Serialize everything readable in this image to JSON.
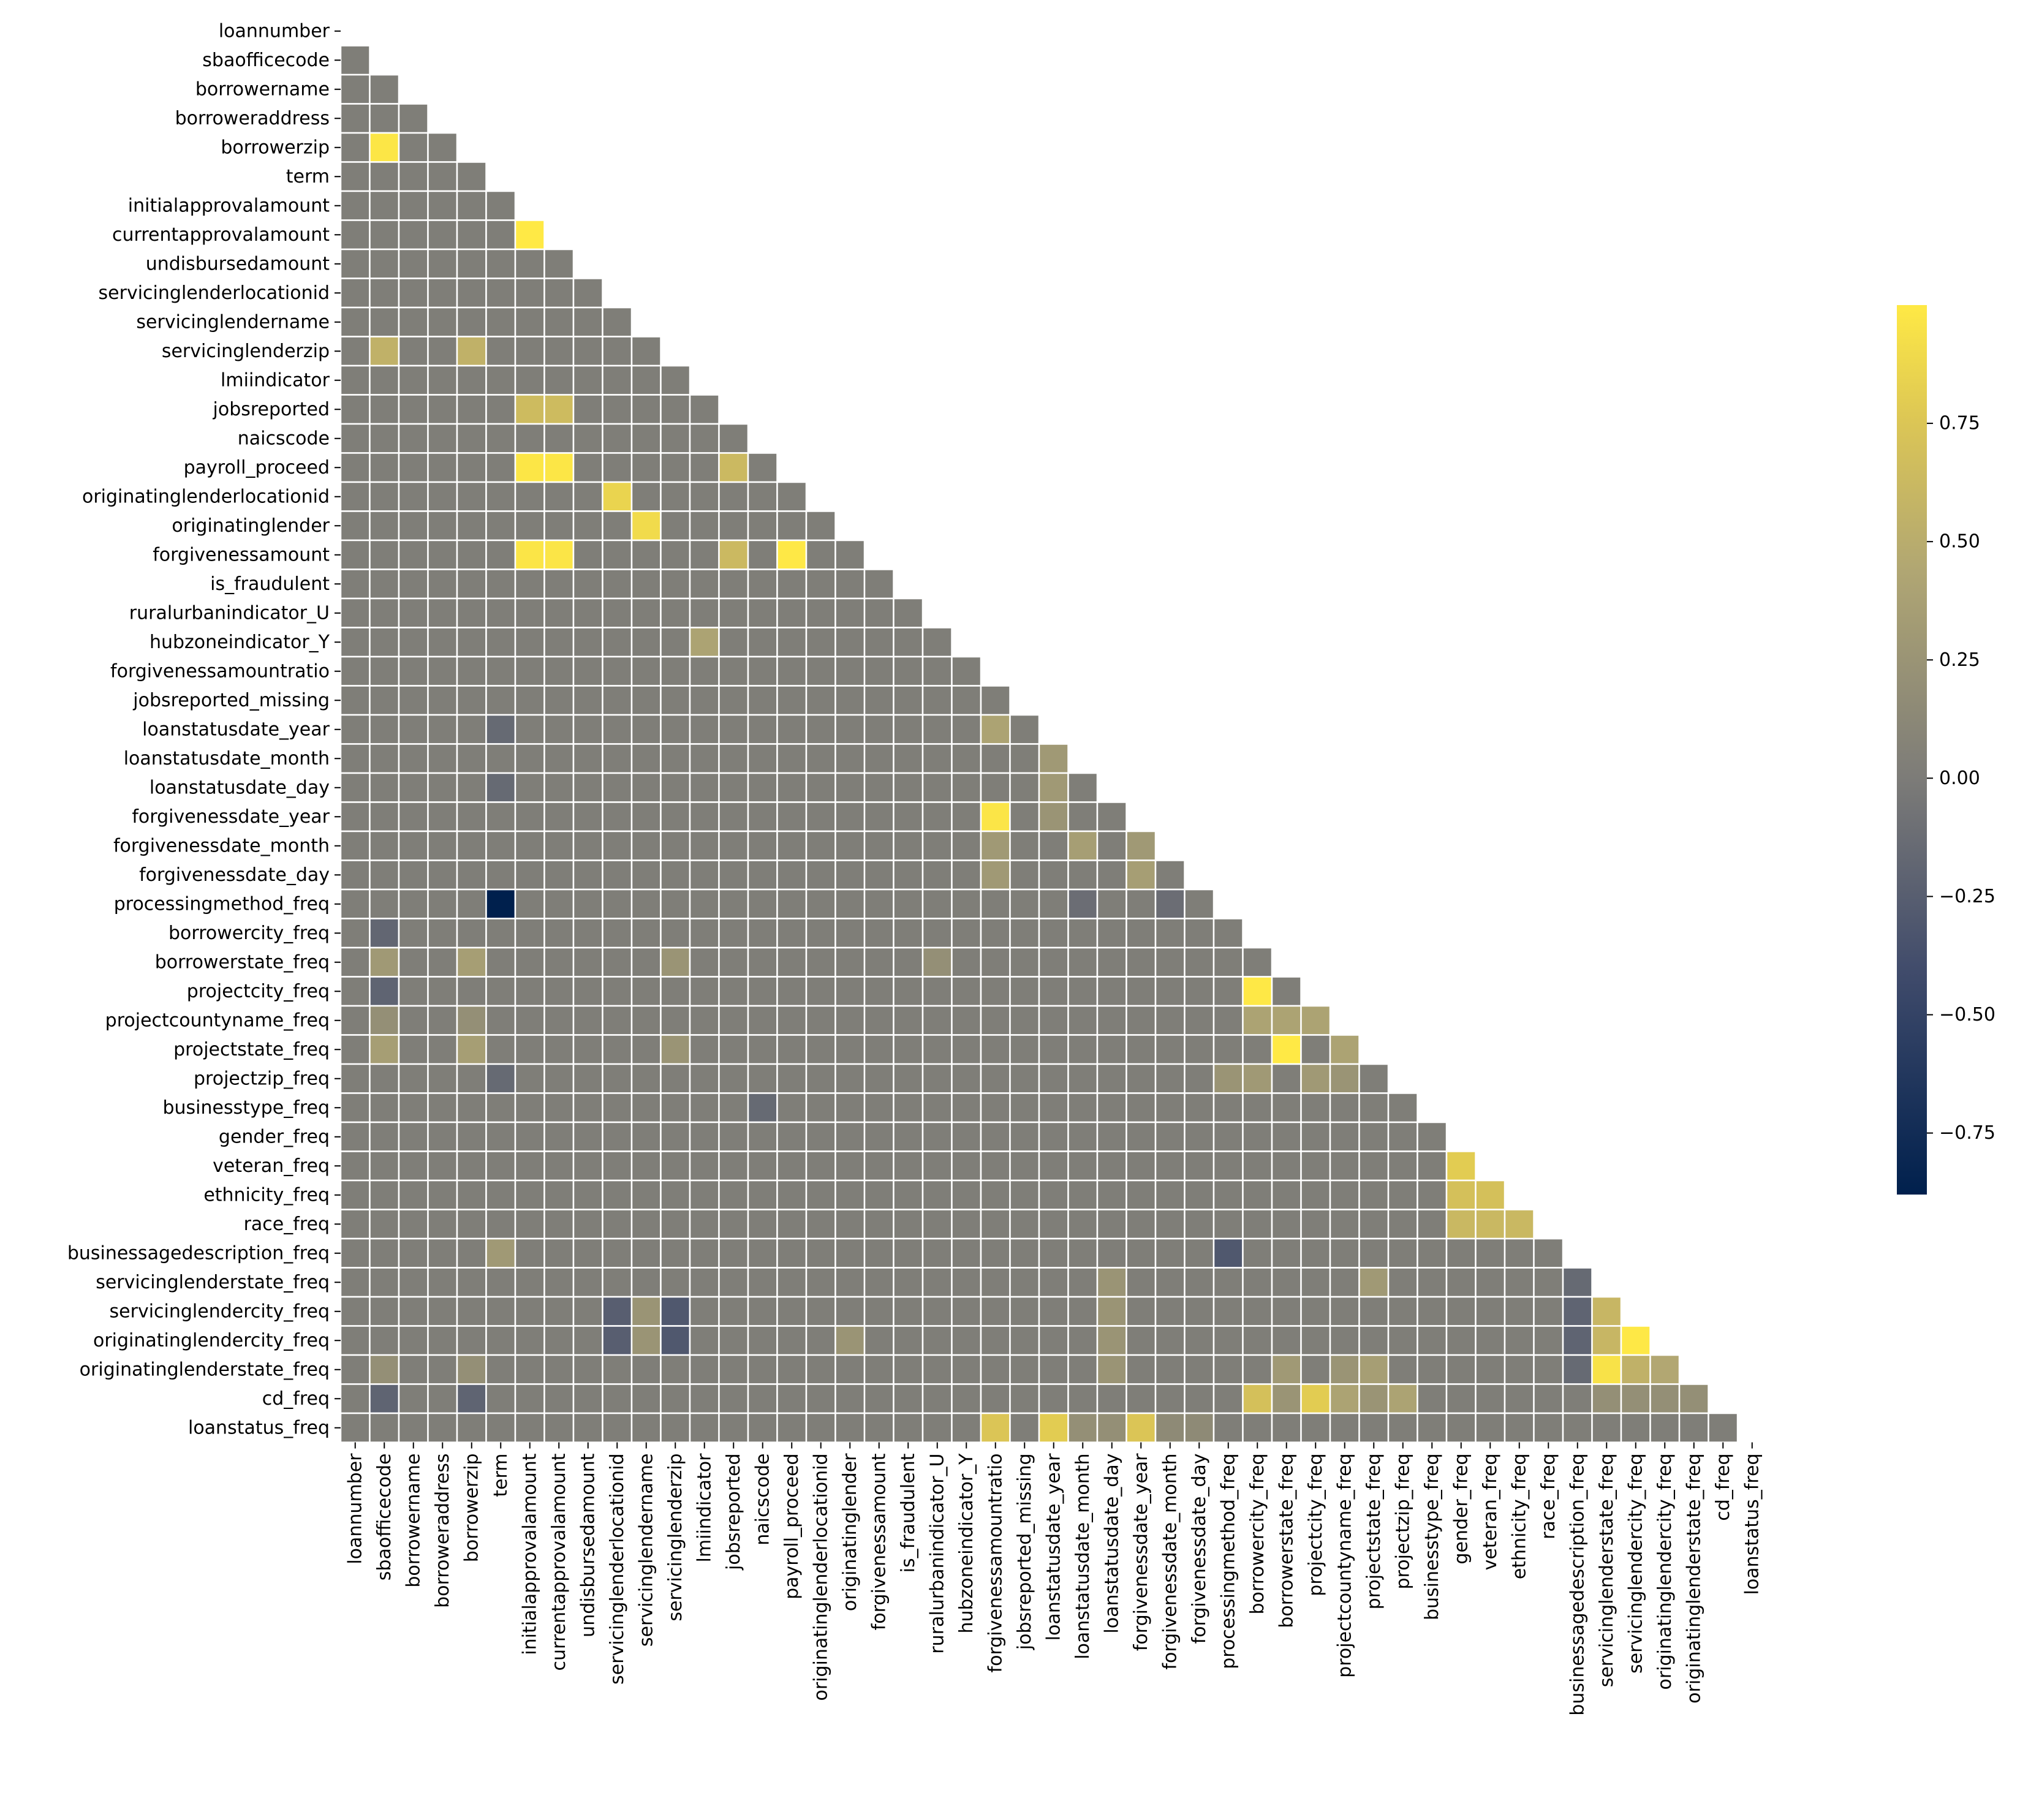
{
  "chart_data": {
    "type": "heatmap",
    "title": "",
    "xlabel": "",
    "ylabel": "",
    "mask": "upper-triangle-including-diagonal",
    "labels": [
      "loannumber",
      "sbaofficecode",
      "borrowername",
      "borroweraddress",
      "borrowerzip",
      "term",
      "initialapprovalamount",
      "currentapprovalamount",
      "undisbursedamount",
      "servicinglenderlocationid",
      "servicinglendername",
      "servicinglenderzip",
      "lmiindicator",
      "jobsreported",
      "naicscode",
      "payroll_proceed",
      "originatinglenderlocationid",
      "originatinglender",
      "forgivenessamount",
      "is_fraudulent",
      "ruralurbanindicator_U",
      "hubzoneindicator_Y",
      "forgivenessamountratio",
      "jobsreported_missing",
      "loanstatusdate_year",
      "loanstatusdate_month",
      "loanstatusdate_day",
      "forgivenessdate_year",
      "forgivenessdate_month",
      "forgivenessdate_day",
      "processingmethod_freq",
      "borrowercity_freq",
      "borrowerstate_freq",
      "projectcity_freq",
      "projectcountyname_freq",
      "projectstate_freq",
      "projectzip_freq",
      "businesstype_freq",
      "gender_freq",
      "veteran_freq",
      "ethnicity_freq",
      "race_freq",
      "businessagedescription_freq",
      "servicinglenderstate_freq",
      "servicinglendercity_freq",
      "originatinglendercity_freq",
      "originatinglenderstate_freq",
      "cd_freq",
      "loanstatus_freq"
    ],
    "value_range": [
      -0.88,
      1.0
    ],
    "colormap": "cividis",
    "colorbar": {
      "ticks": [
        0.75,
        0.5,
        0.25,
        0.0,
        -0.25,
        -0.5,
        -0.75
      ],
      "tick_labels": [
        "0.75",
        "0.50",
        "0.25",
        "0.00",
        "−0.25",
        "−0.50",
        "−0.75"
      ],
      "placement": "right"
    },
    "default_value": 0.02,
    "notable_cells": [
      {
        "row": "borrowerzip",
        "col": "sbaofficecode",
        "value": 0.98
      },
      {
        "row": "currentapprovalamount",
        "col": "initialapprovalamount",
        "value": 1.0
      },
      {
        "row": "servicinglenderzip",
        "col": "sbaofficecode",
        "value": 0.55
      },
      {
        "row": "servicinglenderzip",
        "col": "borrowerzip",
        "value": 0.55
      },
      {
        "row": "jobsreported",
        "col": "initialapprovalamount",
        "value": 0.65
      },
      {
        "row": "jobsreported",
        "col": "currentapprovalamount",
        "value": 0.65
      },
      {
        "row": "payroll_proceed",
        "col": "initialapprovalamount",
        "value": 0.98
      },
      {
        "row": "payroll_proceed",
        "col": "currentapprovalamount",
        "value": 0.98
      },
      {
        "row": "payroll_proceed",
        "col": "jobsreported",
        "value": 0.63
      },
      {
        "row": "originatinglenderlocationid",
        "col": "servicinglenderlocationid",
        "value": 0.85
      },
      {
        "row": "originatinglender",
        "col": "servicinglendername",
        "value": 0.9
      },
      {
        "row": "forgivenessamount",
        "col": "initialapprovalamount",
        "value": 0.97
      },
      {
        "row": "forgivenessamount",
        "col": "currentapprovalamount",
        "value": 0.97
      },
      {
        "row": "forgivenessamount",
        "col": "jobsreported",
        "value": 0.63
      },
      {
        "row": "forgivenessamount",
        "col": "payroll_proceed",
        "value": 0.99
      },
      {
        "row": "hubzoneindicator_Y",
        "col": "lmiindicator",
        "value": 0.4
      },
      {
        "row": "loanstatusdate_year",
        "col": "term",
        "value": -0.15
      },
      {
        "row": "loanstatusdate_year",
        "col": "forgivenessamountratio",
        "value": 0.4
      },
      {
        "row": "loanstatusdate_month",
        "col": "loanstatusdate_year",
        "value": 0.3
      },
      {
        "row": "loanstatusdate_day",
        "col": "term",
        "value": -0.15
      },
      {
        "row": "loanstatusdate_day",
        "col": "loanstatusdate_year",
        "value": 0.3
      },
      {
        "row": "forgivenessdate_year",
        "col": "forgivenessamountratio",
        "value": 0.97
      },
      {
        "row": "forgivenessdate_year",
        "col": "loanstatusdate_year",
        "value": 0.25
      },
      {
        "row": "forgivenessdate_month",
        "col": "forgivenessamountratio",
        "value": 0.3
      },
      {
        "row": "forgivenessdate_month",
        "col": "loanstatusdate_month",
        "value": 0.35
      },
      {
        "row": "forgivenessdate_month",
        "col": "forgivenessdate_year",
        "value": 0.3
      },
      {
        "row": "forgivenessdate_day",
        "col": "forgivenessamountratio",
        "value": 0.3
      },
      {
        "row": "forgivenessdate_day",
        "col": "forgivenessdate_year",
        "value": 0.35
      },
      {
        "row": "processingmethod_freq",
        "col": "term",
        "value": -0.88
      },
      {
        "row": "processingmethod_freq",
        "col": "loanstatusdate_month",
        "value": -0.12
      },
      {
        "row": "processingmethod_freq",
        "col": "forgivenessdate_month",
        "value": -0.12
      },
      {
        "row": "borrowercity_freq",
        "col": "sbaofficecode",
        "value": -0.18
      },
      {
        "row": "borrowerstate_freq",
        "col": "sbaofficecode",
        "value": 0.3
      },
      {
        "row": "borrowerstate_freq",
        "col": "borrowerzip",
        "value": 0.35
      },
      {
        "row": "borrowerstate_freq",
        "col": "servicinglenderzip",
        "value": 0.25
      },
      {
        "row": "borrowerstate_freq",
        "col": "ruralurbanindicator_U",
        "value": 0.2
      },
      {
        "row": "projectcity_freq",
        "col": "sbaofficecode",
        "value": -0.2
      },
      {
        "row": "projectcity_freq",
        "col": "borrowercity_freq",
        "value": 0.99
      },
      {
        "row": "projectcountyname_freq",
        "col": "sbaofficecode",
        "value": 0.2
      },
      {
        "row": "projectcountyname_freq",
        "col": "borrowerzip",
        "value": 0.2
      },
      {
        "row": "projectcountyname_freq",
        "col": "borrowercity_freq",
        "value": 0.4
      },
      {
        "row": "projectcountyname_freq",
        "col": "borrowerstate_freq",
        "value": 0.4
      },
      {
        "row": "projectcountyname_freq",
        "col": "projectcity_freq",
        "value": 0.4
      },
      {
        "row": "projectstate_freq",
        "col": "sbaofficecode",
        "value": 0.35
      },
      {
        "row": "projectstate_freq",
        "col": "borrowerzip",
        "value": 0.35
      },
      {
        "row": "projectstate_freq",
        "col": "servicinglenderzip",
        "value": 0.25
      },
      {
        "row": "projectstate_freq",
        "col": "borrowerstate_freq",
        "value": 1.0
      },
      {
        "row": "projectstate_freq",
        "col": "projectcountyname_freq",
        "value": 0.4
      },
      {
        "row": "projectzip_freq",
        "col": "term",
        "value": -0.15
      },
      {
        "row": "projectzip_freq",
        "col": "processingmethod_freq",
        "value": 0.25
      },
      {
        "row": "projectzip_freq",
        "col": "borrowercity_freq",
        "value": 0.3
      },
      {
        "row": "projectzip_freq",
        "col": "projectcity_freq",
        "value": 0.3
      },
      {
        "row": "projectzip_freq",
        "col": "projectcountyname_freq",
        "value": 0.25
      },
      {
        "row": "businesstype_freq",
        "col": "naicscode",
        "value": -0.15
      },
      {
        "row": "veteran_freq",
        "col": "gender_freq",
        "value": 0.8
      },
      {
        "row": "ethnicity_freq",
        "col": "gender_freq",
        "value": 0.7
      },
      {
        "row": "ethnicity_freq",
        "col": "veteran_freq",
        "value": 0.7
      },
      {
        "row": "race_freq",
        "col": "gender_freq",
        "value": 0.62
      },
      {
        "row": "race_freq",
        "col": "veteran_freq",
        "value": 0.62
      },
      {
        "row": "race_freq",
        "col": "ethnicity_freq",
        "value": 0.62
      },
      {
        "row": "businessagedescription_freq",
        "col": "term",
        "value": 0.3
      },
      {
        "row": "businessagedescription_freq",
        "col": "processingmethod_freq",
        "value": -0.3
      },
      {
        "row": "servicinglenderstate_freq",
        "col": "loanstatusdate_day",
        "value": 0.25
      },
      {
        "row": "servicinglenderstate_freq",
        "col": "projectstate_freq",
        "value": 0.3
      },
      {
        "row": "servicinglenderstate_freq",
        "col": "businessagedescription_freq",
        "value": -0.15
      },
      {
        "row": "servicinglendercity_freq",
        "col": "servicinglenderlocationid",
        "value": -0.25
      },
      {
        "row": "servicinglendercity_freq",
        "col": "servicinglendername",
        "value": 0.25
      },
      {
        "row": "servicinglendercity_freq",
        "col": "servicinglenderzip",
        "value": -0.3
      },
      {
        "row": "servicinglendercity_freq",
        "col": "loanstatusdate_day",
        "value": 0.25
      },
      {
        "row": "servicinglendercity_freq",
        "col": "businessagedescription_freq",
        "value": -0.2
      },
      {
        "row": "servicinglendercity_freq",
        "col": "servicinglenderstate_freq",
        "value": 0.6
      },
      {
        "row": "originatinglendercity_freq",
        "col": "servicinglenderlocationid",
        "value": -0.25
      },
      {
        "row": "originatinglendercity_freq",
        "col": "servicinglendername",
        "value": 0.25
      },
      {
        "row": "originatinglendercity_freq",
        "col": "servicinglenderzip",
        "value": -0.3
      },
      {
        "row": "originatinglendercity_freq",
        "col": "originatinglender",
        "value": 0.25
      },
      {
        "row": "originatinglendercity_freq",
        "col": "loanstatusdate_day",
        "value": 0.25
      },
      {
        "row": "originatinglendercity_freq",
        "col": "businessagedescription_freq",
        "value": -0.2
      },
      {
        "row": "originatinglendercity_freq",
        "col": "servicinglenderstate_freq",
        "value": 0.6
      },
      {
        "row": "originatinglendercity_freq",
        "col": "servicinglendercity_freq",
        "value": 0.99
      },
      {
        "row": "originatinglenderstate_freq",
        "col": "sbaofficecode",
        "value": 0.2
      },
      {
        "row": "originatinglenderstate_freq",
        "col": "borrowerzip",
        "value": 0.2
      },
      {
        "row": "originatinglenderstate_freq",
        "col": "loanstatusdate_day",
        "value": 0.25
      },
      {
        "row": "originatinglenderstate_freq",
        "col": "borrowerstate_freq",
        "value": 0.3
      },
      {
        "row": "originatinglenderstate_freq",
        "col": "projectcountyname_freq",
        "value": 0.25
      },
      {
        "row": "originatinglenderstate_freq",
        "col": "projectstate_freq",
        "value": 0.35
      },
      {
        "row": "originatinglenderstate_freq",
        "col": "businessagedescription_freq",
        "value": -0.15
      },
      {
        "row": "originatinglenderstate_freq",
        "col": "servicinglenderstate_freq",
        "value": 0.95
      },
      {
        "row": "originatinglenderstate_freq",
        "col": "servicinglendercity_freq",
        "value": 0.55
      },
      {
        "row": "originatinglenderstate_freq",
        "col": "originatinglendercity_freq",
        "value": 0.45
      },
      {
        "row": "cd_freq",
        "col": "sbaofficecode",
        "value": -0.2
      },
      {
        "row": "cd_freq",
        "col": "borrowerzip",
        "value": -0.2
      },
      {
        "row": "cd_freq",
        "col": "borrowercity_freq",
        "value": 0.7
      },
      {
        "row": "cd_freq",
        "col": "borrowerstate_freq",
        "value": 0.25
      },
      {
        "row": "cd_freq",
        "col": "projectcity_freq",
        "value": 0.8
      },
      {
        "row": "cd_freq",
        "col": "projectcountyname_freq",
        "value": 0.4
      },
      {
        "row": "cd_freq",
        "col": "projectstate_freq",
        "value": 0.25
      },
      {
        "row": "cd_freq",
        "col": "projectzip_freq",
        "value": 0.4
      },
      {
        "row": "cd_freq",
        "col": "servicinglenderstate_freq",
        "value": 0.2
      },
      {
        "row": "cd_freq",
        "col": "servicinglendercity_freq",
        "value": 0.2
      },
      {
        "row": "cd_freq",
        "col": "originatinglendercity_freq",
        "value": 0.2
      },
      {
        "row": "cd_freq",
        "col": "originatinglenderstate_freq",
        "value": 0.2
      },
      {
        "row": "loanstatus_freq",
        "col": "forgivenessamountratio",
        "value": 0.75
      },
      {
        "row": "loanstatus_freq",
        "col": "loanstatusdate_year",
        "value": 0.8
      },
      {
        "row": "loanstatus_freq",
        "col": "loanstatusdate_month",
        "value": 0.2
      },
      {
        "row": "loanstatus_freq",
        "col": "loanstatusdate_day",
        "value": 0.2
      },
      {
        "row": "loanstatus_freq",
        "col": "forgivenessdate_year",
        "value": 0.75
      },
      {
        "row": "loanstatus_freq",
        "col": "forgivenessdate_month",
        "value": 0.15
      },
      {
        "row": "loanstatus_freq",
        "col": "forgivenessdate_day",
        "value": 0.15
      }
    ]
  }
}
